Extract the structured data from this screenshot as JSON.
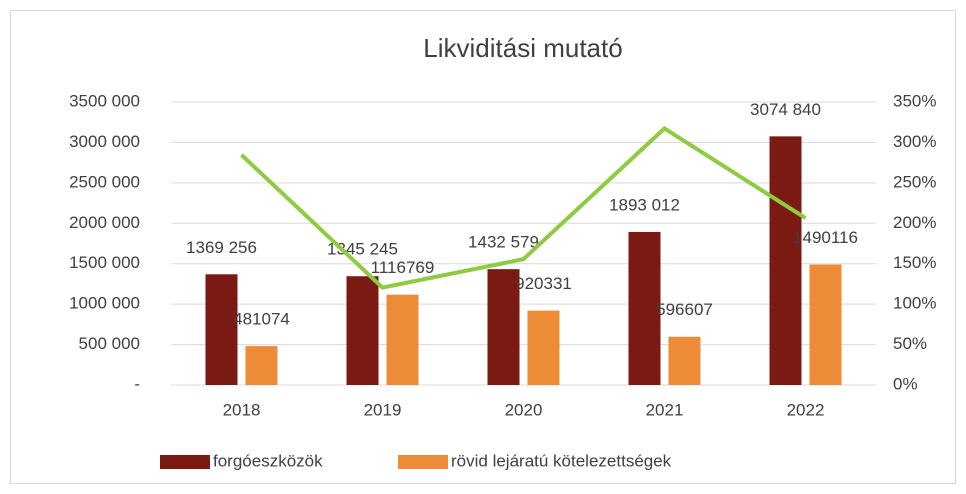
{
  "chart_data": {
    "type": "bar",
    "title": "Likviditási mutató",
    "categories": [
      "2018",
      "2019",
      "2020",
      "2021",
      "2022"
    ],
    "series": [
      {
        "name": "forgóeszközök",
        "color": "#7b1a13",
        "values": [
          1369256,
          1345245,
          1432579,
          1893012,
          3074840
        ],
        "value_labels": [
          "1369 256",
          "1345 245",
          "1432 579",
          "1893 012",
          "3074 840"
        ]
      },
      {
        "name": "rövid lejáratú kötelezettségek",
        "color": "#ed8b37",
        "values": [
          481074,
          1116769,
          920331,
          596607,
          1490116
        ]
      },
      {
        "type": "line",
        "axis": "y2",
        "color": "#8ccc3e",
        "values": [
          284.6,
          120.5,
          155.7,
          317.3,
          206.4
        ]
      }
    ],
    "ylim": [
      0,
      3500000
    ],
    "yticks": [
      {
        "value": 0,
        "label": "-"
      },
      {
        "value": 500000,
        "label": "500 000"
      },
      {
        "value": 1000000,
        "label": "1000 000"
      },
      {
        "value": 1500000,
        "label": "1500 000"
      },
      {
        "value": 2000000,
        "label": "2000 000"
      },
      {
        "value": 2500000,
        "label": "2500 000"
      },
      {
        "value": 3000000,
        "label": "3000 000"
      },
      {
        "value": 3500000,
        "label": "3500 000"
      }
    ],
    "y2lim": [
      0,
      350
    ],
    "y2ticks": [
      {
        "value": 0,
        "label": "0%"
      },
      {
        "value": 50,
        "label": "50%"
      },
      {
        "value": 100,
        "label": "100%"
      },
      {
        "value": 150,
        "label": "150%"
      },
      {
        "value": 200,
        "label": "200%"
      },
      {
        "value": 250,
        "label": "250%"
      },
      {
        "value": 300,
        "label": "300%"
      },
      {
        "value": 350,
        "label": "350%"
      }
    ],
    "grid": true,
    "legend": "bottom"
  }
}
